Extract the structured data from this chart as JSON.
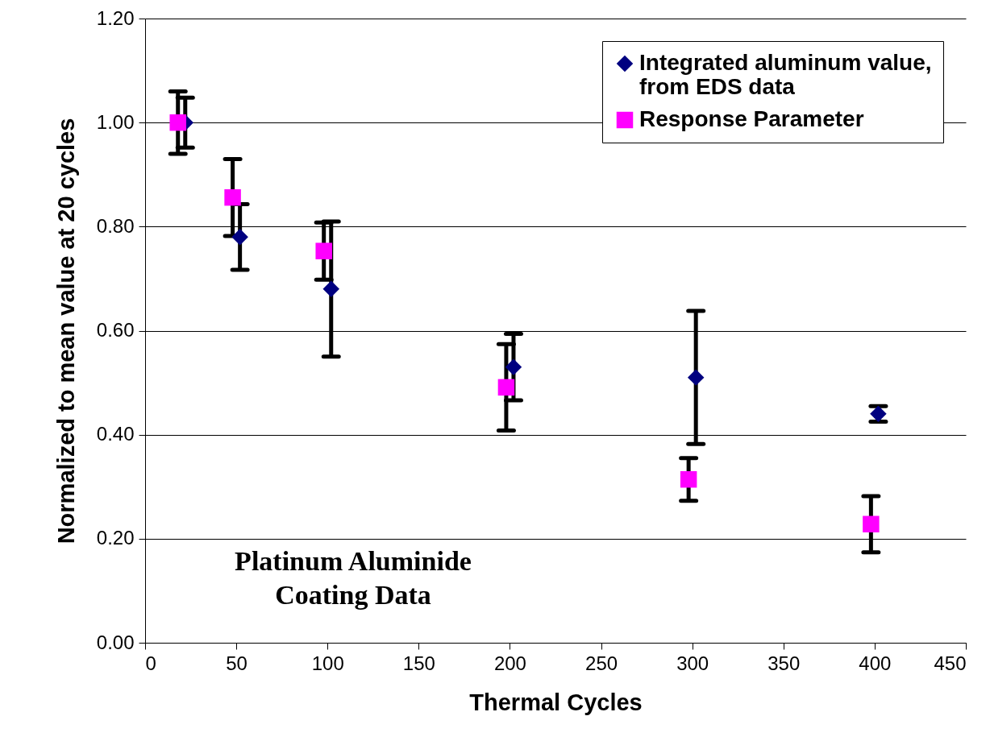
{
  "chart_data": {
    "type": "scatter",
    "xlabel": "Thermal Cycles",
    "ylabel": "Normalized to mean value at 20 cycles",
    "xlim": [
      0,
      450
    ],
    "xticks": [
      0,
      50,
      100,
      150,
      200,
      250,
      300,
      350,
      400,
      450
    ],
    "ylim": [
      0,
      1.2
    ],
    "yticks": [
      {
        "value": 0,
        "label": "0.00"
      },
      {
        "value": 0.2,
        "label": "0.20"
      },
      {
        "value": 0.4,
        "label": "0.40"
      },
      {
        "value": 0.6,
        "label": "0.60"
      },
      {
        "value": 0.8,
        "label": "0.80"
      },
      {
        "value": 1.0,
        "label": "1.00"
      },
      {
        "value": 1.2,
        "label": "1.20"
      }
    ],
    "grid": "y",
    "legend": "top right",
    "annotations": [
      "Platinum Aluminide Coating Data"
    ],
    "series": [
      {
        "name": "Integrated aluminum value, from EDS data",
        "color": "#000080",
        "marker": "diamond",
        "x": [
          22,
          52,
          102,
          202,
          302,
          402
        ],
        "values": [
          1.0,
          0.78,
          0.68,
          0.53,
          0.51,
          0.44
        ],
        "errors": [
          0.048,
          0.063,
          0.13,
          0.064,
          0.128,
          0.015
        ]
      },
      {
        "name": "Response Parameter",
        "color": "#ff00ff",
        "marker": "square",
        "x": [
          18,
          48,
          98,
          198,
          298,
          398
        ],
        "values": [
          1.0,
          0.856,
          0.753,
          0.491,
          0.314,
          0.228
        ],
        "errors": [
          0.06,
          0.074,
          0.055,
          0.083,
          0.041,
          0.054
        ]
      }
    ]
  }
}
